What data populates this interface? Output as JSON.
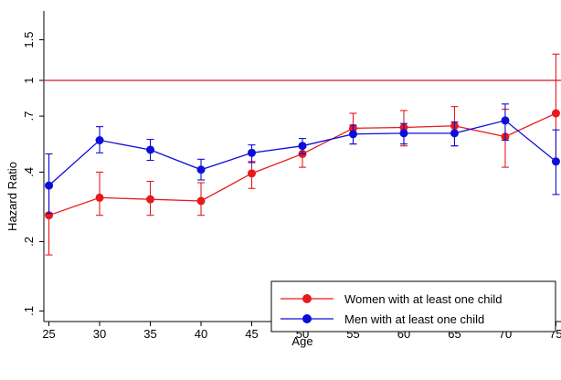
{
  "chart_data": {
    "type": "line",
    "xlabel": "Age",
    "ylabel": "Hazard Ratio",
    "y_scale": "log",
    "ylim": [
      0.09,
      2.0
    ],
    "xlim": [
      24.5,
      75.5
    ],
    "x_ticks": [
      25,
      30,
      35,
      40,
      45,
      50,
      55,
      60,
      65,
      70,
      75
    ],
    "x_tick_labels": [
      "25",
      "30",
      "35",
      "40",
      "45",
      "50",
      "55",
      "60",
      "65",
      "70",
      "75"
    ],
    "y_ticks": [
      0.1,
      0.2,
      0.4,
      0.7,
      1,
      1.5
    ],
    "y_tick_labels": [
      ".1",
      ".2",
      ".4",
      ".7",
      "1",
      "1.5"
    ],
    "reference_line": {
      "value": 1,
      "color": "#d7191c"
    },
    "grid": false,
    "legend_position": "bottom-right",
    "x": [
      25,
      30,
      35,
      40,
      45,
      50,
      55,
      60,
      65,
      70,
      75
    ],
    "series": [
      {
        "name": "Women with at least one child",
        "color": "#e8191c",
        "values": [
          0.26,
          0.31,
          0.305,
          0.3,
          0.395,
          0.48,
          0.62,
          0.625,
          0.635,
          0.57,
          0.72
        ],
        "ci_low": [
          0.175,
          0.26,
          0.26,
          0.26,
          0.34,
          0.42,
          0.53,
          0.52,
          0.52,
          0.42,
          0.45
        ],
        "ci_high": [
          0.355,
          0.4,
          0.365,
          0.36,
          0.445,
          0.52,
          0.72,
          0.74,
          0.77,
          0.75,
          1.3
        ]
      },
      {
        "name": "Men with at least one child",
        "color": "#0d0ddb",
        "values": [
          0.35,
          0.55,
          0.5,
          0.41,
          0.485,
          0.52,
          0.585,
          0.59,
          0.59,
          0.67,
          0.445
        ],
        "ci_low": [
          0.265,
          0.485,
          0.45,
          0.37,
          0.44,
          0.48,
          0.53,
          0.53,
          0.52,
          0.55,
          0.32
        ],
        "ci_high": [
          0.48,
          0.63,
          0.555,
          0.455,
          0.525,
          0.56,
          0.64,
          0.65,
          0.66,
          0.79,
          0.61
        ]
      }
    ]
  }
}
